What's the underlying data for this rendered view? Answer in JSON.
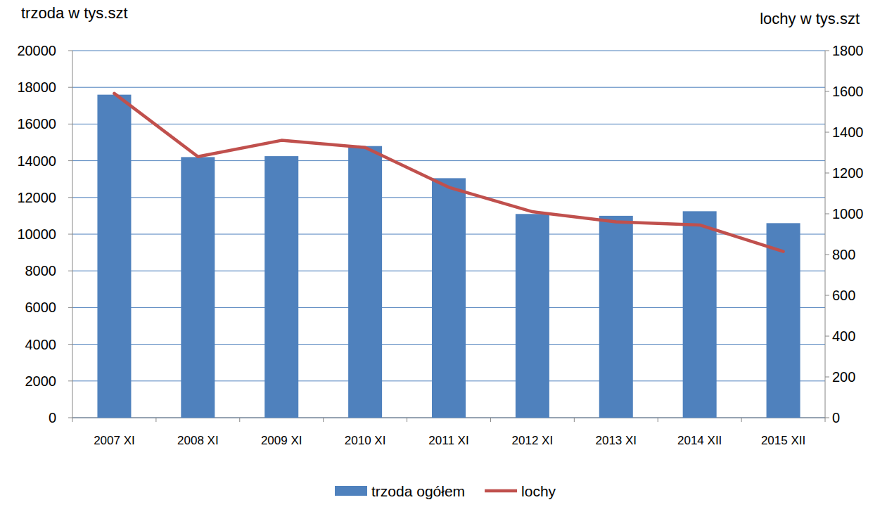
{
  "chart_data": {
    "type": "bar",
    "y_label": "trzoda w tys.szt",
    "y2_label": "lochy w tys.szt",
    "categories": [
      "2007 XI",
      "2008 XI",
      "2009 XI",
      "2010 XI",
      "2011 XI",
      "2012 XI",
      "2013 XI",
      "2014 XII",
      "2015 XII"
    ],
    "series": [
      {
        "name": "trzoda ogółem",
        "type": "bar",
        "color": "#4f81bd",
        "values": [
          17600,
          14200,
          14250,
          14800,
          13050,
          11100,
          11000,
          11250,
          10600
        ]
      },
      {
        "name": "lochy",
        "type": "line",
        "axis": "y2",
        "color": "#c0504d",
        "values": [
          1590,
          1280,
          1360,
          1325,
          1130,
          1010,
          960,
          945,
          815
        ]
      }
    ],
    "ylim": [
      0,
      20000
    ],
    "yticks": [
      0,
      2000,
      4000,
      6000,
      8000,
      10000,
      12000,
      14000,
      16000,
      18000,
      20000
    ],
    "y2lim": [
      0,
      1800
    ],
    "y2ticks": [
      0,
      200,
      400,
      600,
      800,
      1000,
      1200,
      1400,
      1600,
      1800
    ],
    "grid": true,
    "legend": "bottom"
  }
}
